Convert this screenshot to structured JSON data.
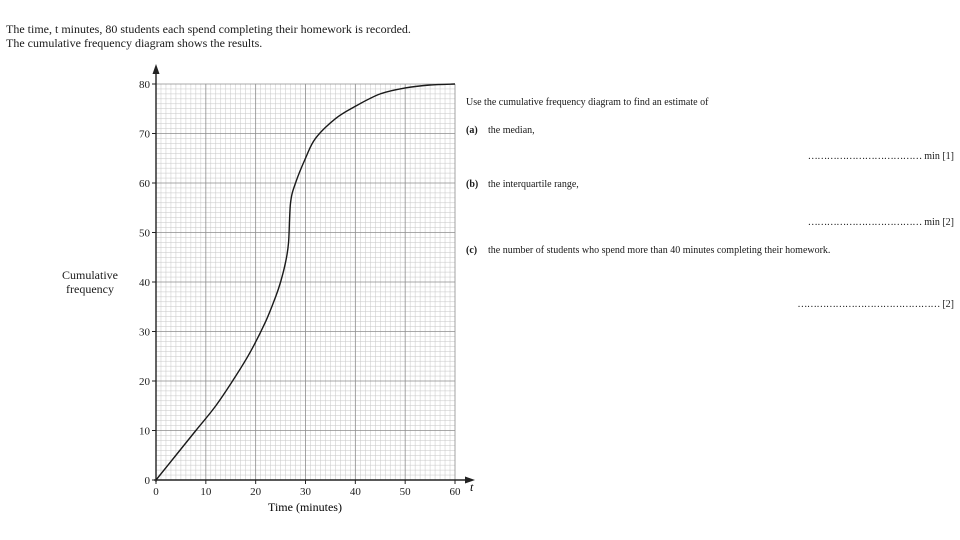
{
  "intro": {
    "line1": "The time, t minutes, 80 students each spend completing their homework is recorded.",
    "line2": "The cumulative frequency diagram shows the results."
  },
  "questions": {
    "stem": "Use the cumulative frequency diagram to find an estimate of",
    "items": [
      {
        "label": "(a)",
        "text": "the median,",
        "dots": "………………………………",
        "suffix": "min [1]"
      },
      {
        "label": "(b)",
        "text": "the interquartile range,",
        "dots": "………………………………",
        "suffix": "min [2]"
      },
      {
        "label": "(c)",
        "text": "the number of students who spend more than 40 minutes completing their homework.",
        "dots": "………………………………………",
        "suffix": "[2]"
      }
    ]
  },
  "chart_data": {
    "type": "line",
    "xlabel": "Time (minutes)",
    "x_axis_symbol": "t",
    "ylabel_lines": [
      "Cumulative",
      "frequency"
    ],
    "xlim": [
      0,
      60
    ],
    "ylim": [
      0,
      80
    ],
    "xticks": [
      0,
      10,
      20,
      30,
      40,
      50,
      60
    ],
    "yticks": [
      0,
      10,
      20,
      30,
      40,
      50,
      60,
      70,
      80
    ],
    "grid": true,
    "grid_minor_step_x": 1,
    "grid_minor_step_y": 1,
    "series": [
      {
        "x": [
          0,
          4,
          8,
          12,
          16,
          19,
          22,
          24,
          25,
          26,
          26.6,
          27,
          28,
          30,
          32,
          36,
          40,
          45,
          50,
          55,
          60
        ],
        "y": [
          0,
          5,
          10,
          15,
          21,
          26,
          32,
          37,
          40,
          44,
          48,
          56,
          60,
          65,
          69,
          73,
          75.5,
          78,
          79.2,
          79.8,
          80
        ]
      }
    ]
  }
}
